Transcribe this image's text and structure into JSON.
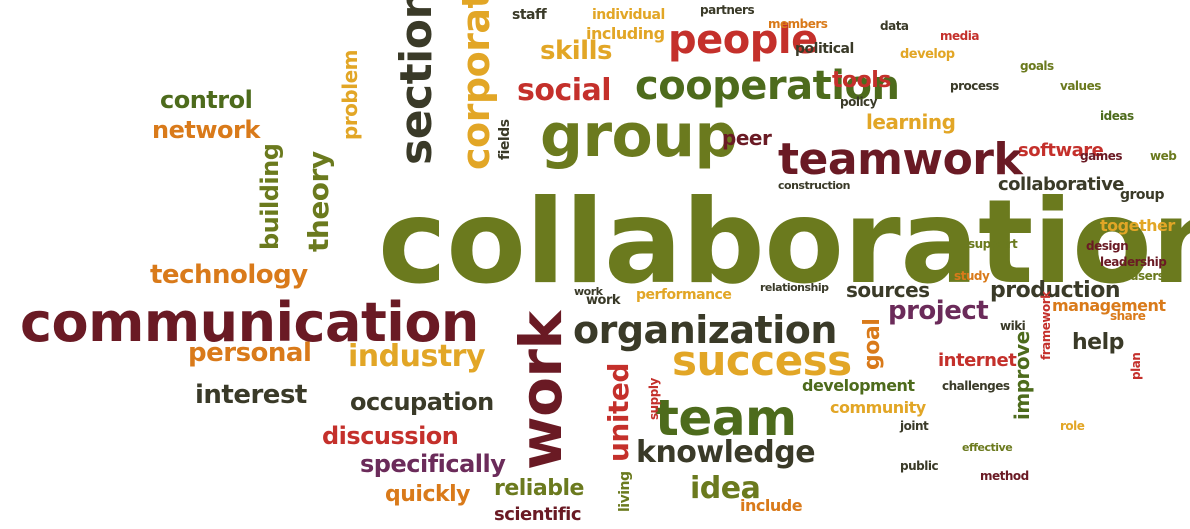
{
  "colors": {
    "olive": "#6b7a1e",
    "maroon": "#6a1a24",
    "orange": "#d97a1a",
    "gold": "#e2a626",
    "red": "#c4302b",
    "dark": "#3a3a28",
    "green": "#4d6b1c",
    "purple": "#6b2b5a"
  },
  "words": [
    {
      "text": "collaboration",
      "color": "olive"
    },
    {
      "text": "communication",
      "color": "maroon"
    },
    {
      "text": "group",
      "color": "olive"
    },
    {
      "text": "teamwork",
      "color": "maroon"
    },
    {
      "text": "cooperation",
      "color": "green"
    },
    {
      "text": "people",
      "color": "red"
    },
    {
      "text": "organization",
      "color": "dark"
    },
    {
      "text": "success",
      "color": "gold"
    },
    {
      "text": "team",
      "color": "green"
    },
    {
      "text": "work",
      "color": "maroon"
    },
    {
      "text": "section",
      "color": "dark"
    },
    {
      "text": "corporate",
      "color": "gold"
    },
    {
      "text": "social",
      "color": "red"
    },
    {
      "text": "skills",
      "color": "gold"
    },
    {
      "text": "tools",
      "color": "red"
    },
    {
      "text": "learning",
      "color": "gold"
    },
    {
      "text": "peer",
      "color": "maroon"
    },
    {
      "text": "control",
      "color": "green"
    },
    {
      "text": "network",
      "color": "orange"
    },
    {
      "text": "problem",
      "color": "gold"
    },
    {
      "text": "theory",
      "color": "olive"
    },
    {
      "text": "building",
      "color": "olive"
    },
    {
      "text": "technology",
      "color": "orange"
    },
    {
      "text": "personal",
      "color": "orange"
    },
    {
      "text": "interest",
      "color": "dark"
    },
    {
      "text": "industry",
      "color": "gold"
    },
    {
      "text": "occupation",
      "color": "dark"
    },
    {
      "text": "discussion",
      "color": "red"
    },
    {
      "text": "specifically",
      "color": "purple"
    },
    {
      "text": "quickly",
      "color": "orange"
    },
    {
      "text": "reliable",
      "color": "olive"
    },
    {
      "text": "scientific",
      "color": "maroon"
    },
    {
      "text": "united",
      "color": "red"
    },
    {
      "text": "knowledge",
      "color": "dark"
    },
    {
      "text": "idea",
      "color": "olive"
    },
    {
      "text": "include",
      "color": "orange"
    },
    {
      "text": "sources",
      "color": "dark"
    },
    {
      "text": "performance",
      "color": "gold"
    },
    {
      "text": "production",
      "color": "dark"
    },
    {
      "text": "project",
      "color": "purple"
    },
    {
      "text": "goal",
      "color": "orange"
    },
    {
      "text": "internet",
      "color": "red"
    },
    {
      "text": "development",
      "color": "green"
    },
    {
      "text": "community",
      "color": "gold"
    },
    {
      "text": "improve",
      "color": "green"
    },
    {
      "text": "help",
      "color": "dark"
    },
    {
      "text": "software",
      "color": "red"
    },
    {
      "text": "collaborative",
      "color": "dark"
    },
    {
      "text": "together",
      "color": "gold"
    },
    {
      "text": "management",
      "color": "orange"
    },
    {
      "text": "political",
      "color": "dark"
    },
    {
      "text": "including",
      "color": "gold"
    },
    {
      "text": "staff",
      "color": "dark"
    },
    {
      "text": "fields",
      "color": "dark"
    },
    {
      "text": "supply",
      "color": "red"
    },
    {
      "text": "construction",
      "color": "dark"
    },
    {
      "text": "relationship",
      "color": "dark"
    },
    {
      "text": "work",
      "color": "dark"
    },
    {
      "text": "living",
      "color": "olive"
    },
    {
      "text": "challenges",
      "color": "dark"
    },
    {
      "text": "framework",
      "color": "red"
    },
    {
      "text": "members",
      "color": "orange"
    },
    {
      "text": "partners",
      "color": "dark"
    },
    {
      "text": "individual",
      "color": "gold"
    },
    {
      "text": "leadership",
      "color": "maroon"
    },
    {
      "text": "effective",
      "color": "olive"
    },
    {
      "text": "group",
      "color": "dark"
    },
    {
      "text": "web",
      "color": "olive"
    },
    {
      "text": "work",
      "color": "dark"
    },
    {
      "text": "develop",
      "color": "gold"
    },
    {
      "text": "process",
      "color": "dark"
    },
    {
      "text": "values",
      "color": "olive"
    },
    {
      "text": "design",
      "color": "maroon"
    },
    {
      "text": "share",
      "color": "orange"
    },
    {
      "text": "support",
      "color": "olive"
    },
    {
      "text": "policy",
      "color": "dark"
    },
    {
      "text": "study",
      "color": "orange"
    },
    {
      "text": "ideas",
      "color": "green"
    },
    {
      "text": "plan",
      "color": "red"
    },
    {
      "text": "joint",
      "color": "dark"
    },
    {
      "text": "role",
      "color": "gold"
    },
    {
      "text": "method",
      "color": "maroon"
    },
    {
      "text": "public",
      "color": "dark"
    },
    {
      "text": "goals",
      "color": "olive"
    },
    {
      "text": "data",
      "color": "dark"
    },
    {
      "text": "media",
      "color": "red"
    },
    {
      "text": "users",
      "color": "olive"
    },
    {
      "text": "games",
      "color": "maroon"
    },
    {
      "text": "wiki",
      "color": "dark"
    }
  ]
}
